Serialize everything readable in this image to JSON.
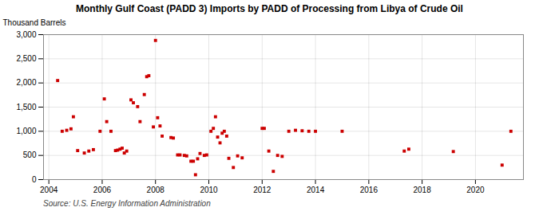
{
  "chart_data": {
    "type": "scatter",
    "title": "Monthly Gulf Coast (PADD 3) Imports by PADD of Processing from Libya of Crude Oil",
    "ylabel": "Thousand Barrels",
    "annotations": [
      "Source: U.S. Energy Information Administration"
    ],
    "color": "#cc0000",
    "marker": "square",
    "grid": true,
    "xlim": [
      2003.8,
      2021.8
    ],
    "ylim": [
      0,
      3000
    ],
    "xticks": [
      2004,
      2006,
      2008,
      2010,
      2012,
      2014,
      2016,
      2018,
      2020
    ],
    "yticks": [
      0,
      500,
      {
        "value": 1000,
        "label": "1,000"
      },
      {
        "value": 1500,
        "label": "1,500"
      },
      {
        "value": 2000,
        "label": "2,000"
      },
      {
        "value": 2500,
        "label": "2,500"
      },
      {
        "value": 3000,
        "label": "3,000"
      }
    ],
    "x": [
      2004.33,
      2004.5,
      2004.67,
      2004.83,
      2004.92,
      2005.08,
      2005.33,
      2005.5,
      2005.67,
      2005.92,
      2006.08,
      2006.17,
      2006.33,
      2006.5,
      2006.58,
      2006.67,
      2006.75,
      2006.83,
      2006.92,
      2007.08,
      2007.17,
      2007.33,
      2007.42,
      2007.58,
      2007.67,
      2007.75,
      2007.92,
      2008.0,
      2008.08,
      2008.17,
      2008.25,
      2008.58,
      2008.67,
      2008.83,
      2008.92,
      2009.08,
      2009.17,
      2009.33,
      2009.42,
      2009.5,
      2009.58,
      2009.67,
      2009.83,
      2009.92,
      2010.08,
      2010.17,
      2010.25,
      2010.33,
      2010.42,
      2010.5,
      2010.58,
      2010.67,
      2010.75,
      2010.92,
      2011.08,
      2011.25,
      2012.0,
      2012.08,
      2012.25,
      2012.42,
      2012.58,
      2012.75,
      2013.0,
      2013.25,
      2013.5,
      2013.75,
      2014.0,
      2015.0,
      2017.33,
      2017.5,
      2019.17,
      2021.0,
      2021.33
    ],
    "values": [
      2050,
      1000,
      1020,
      1050,
      1300,
      600,
      550,
      590,
      620,
      1000,
      1670,
      1200,
      1000,
      600,
      610,
      630,
      650,
      550,
      590,
      1650,
      1590,
      1510,
      1200,
      1760,
      2130,
      2150,
      1090,
      2880,
      1280,
      1110,
      900,
      870,
      860,
      510,
      510,
      500,
      490,
      380,
      380,
      100,
      430,
      540,
      500,
      510,
      1000,
      1060,
      1300,
      880,
      760,
      960,
      1000,
      900,
      440,
      250,
      490,
      450,
      1060,
      1060,
      590,
      170,
      500,
      480,
      1000,
      1020,
      1010,
      1000,
      1000,
      1000,
      590,
      630,
      580,
      300,
      1000
    ]
  }
}
